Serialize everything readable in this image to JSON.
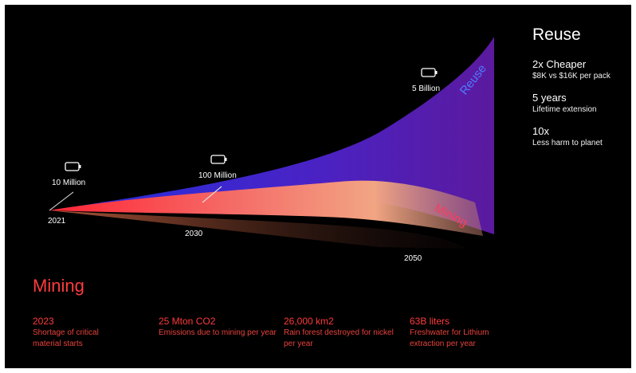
{
  "chart": {
    "reuse_curve_label": "Reuse",
    "mining_curve_label": "Mining",
    "milestones": [
      {
        "label": "10 Million"
      },
      {
        "label": "100 Million"
      },
      {
        "label": "5 Billion"
      }
    ],
    "years": [
      "2021",
      "2030",
      "2050"
    ]
  },
  "reuse": {
    "title": "Reuse",
    "items": [
      {
        "value": "2x Cheaper",
        "desc": "$8K vs $16K per pack"
      },
      {
        "value": "5 years",
        "desc": "Lifetime extension"
      },
      {
        "value": "10x",
        "desc": "Less harm to planet"
      }
    ]
  },
  "mining": {
    "title": "Mining",
    "items": [
      {
        "value": "2023",
        "desc": "Shortage of critical material starts"
      },
      {
        "value": "25 Mton CO2",
        "desc": "Emissions due to mining per year"
      },
      {
        "value": "26,000 km2",
        "desc": "Rain forest destroyed for nickel per year"
      },
      {
        "value": "63B liters",
        "desc": "Freshwater for Lithium extraction per year"
      }
    ]
  },
  "colors": {
    "background": "#000000",
    "reuse_start": "#2b2fd9",
    "reuse_end": "#5a1fa8",
    "mining_start": "#ff2e3a",
    "mining_end": "#f0a37c",
    "mining_text": "#ff3b3b",
    "reuse_label": "#4f7bff"
  }
}
